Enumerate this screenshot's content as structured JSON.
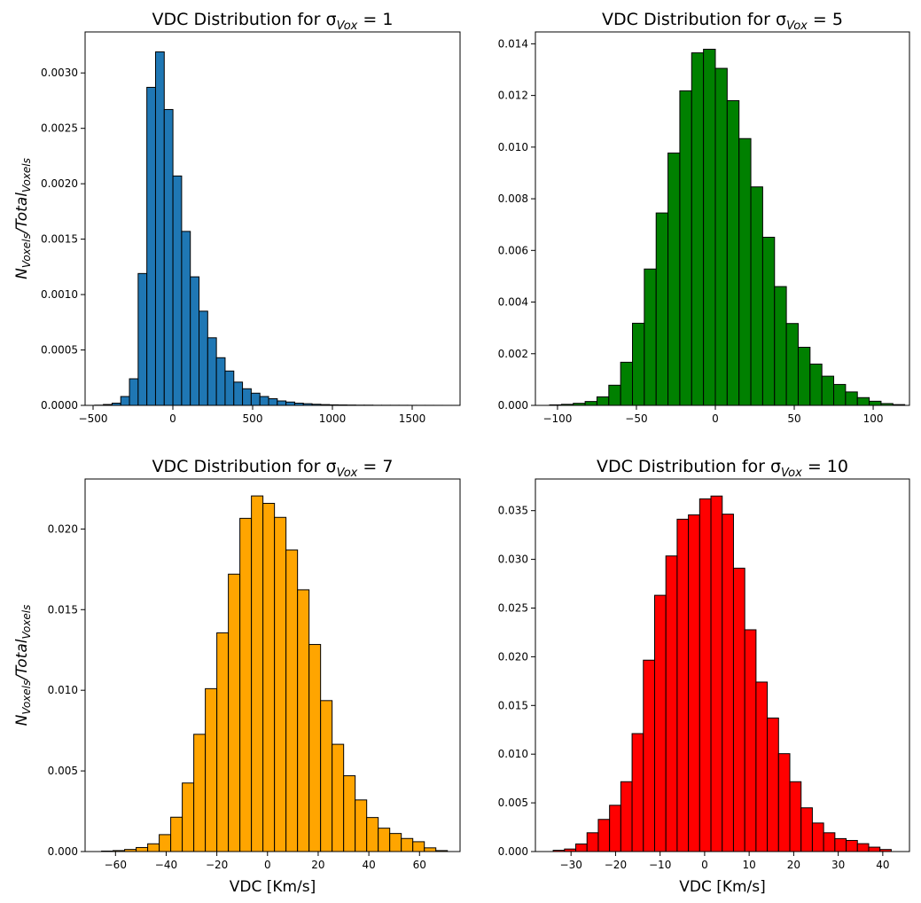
{
  "figure": {
    "background": "#ffffff"
  },
  "chart_data": [
    {
      "type": "bar",
      "title": "VDC Distribution for σ",
      "title_sub": "Vox",
      "title_value": " = 1",
      "xlabel": "",
      "ylabel_main": "N",
      "ylabel_sub1": "Voxels",
      "ylabel_mid": "/Total",
      "ylabel_sub2": "Voxels",
      "color": "#1f77b4",
      "xlim": [
        -550,
        1800
      ],
      "ylim": [
        0,
        0.00337
      ],
      "xticks": [
        -500,
        0,
        500,
        1000,
        1500
      ],
      "xtick_labels": [
        "−500",
        "0",
        "500",
        "1000",
        "1500"
      ],
      "yticks": [
        0,
        0.0005,
        0.001,
        0.0015,
        0.002,
        0.0025,
        0.003
      ],
      "ytick_labels": [
        "0.0000",
        "0.0005",
        "0.0010",
        "0.0015",
        "0.0020",
        "0.0025",
        "0.0030"
      ],
      "bin_start": -490,
      "bin_width": 54.5,
      "values": [
        2e-06,
        8e-06,
        2e-05,
        8e-05,
        0.00024,
        0.00119,
        0.00287,
        0.00319,
        0.00267,
        0.00207,
        0.00157,
        0.00116,
        0.00085,
        0.00061,
        0.00043,
        0.00031,
        0.00021,
        0.00015,
        0.00011,
        8e-05,
        6e-05,
        4e-05,
        3e-05,
        2e-05,
        1.5e-05,
        1e-05,
        7e-06,
        5e-06,
        4e-06,
        3e-06,
        2e-06,
        2e-06,
        1e-06,
        1e-06,
        1e-06,
        8e-07,
        6e-07,
        5e-07,
        4e-07,
        3e-07,
        2e-07,
        2e-07
      ]
    },
    {
      "type": "bar",
      "title": "VDC Distribution for σ",
      "title_sub": "Vox",
      "title_value": " = 5",
      "xlabel": "",
      "ylabel_main": "",
      "color": "#008000",
      "xlim": [
        -114,
        123
      ],
      "ylim": [
        0,
        0.01446
      ],
      "xticks": [
        -100,
        -50,
        0,
        50,
        100
      ],
      "xtick_labels": [
        "−100",
        "−50",
        "0",
        "50",
        "100"
      ],
      "yticks": [
        0,
        0.002,
        0.004,
        0.006,
        0.008,
        0.01,
        0.012,
        0.014
      ],
      "ytick_labels": [
        "0.000",
        "0.002",
        "0.004",
        "0.006",
        "0.008",
        "0.010",
        "0.012",
        "0.014"
      ],
      "bin_start": -105,
      "bin_width": 7.5,
      "values": [
        2e-05,
        4e-05,
        8e-05,
        0.00015,
        0.00033,
        0.00078,
        0.00167,
        0.00318,
        0.00528,
        0.00745,
        0.00977,
        0.01218,
        0.01365,
        0.01379,
        0.01305,
        0.0118,
        0.01033,
        0.00846,
        0.00651,
        0.0046,
        0.00317,
        0.00225,
        0.0016,
        0.00113,
        0.00081,
        0.00052,
        0.0003,
        0.00016,
        7e-05,
        3e-05
      ]
    },
    {
      "type": "bar",
      "title": "VDC Distribution for σ",
      "title_sub": "Vox",
      "title_value": " = 7",
      "xlabel": "VDC [Km/s]",
      "ylabel_main": "N",
      "ylabel_sub1": "Voxels",
      "ylabel_mid": "/Total",
      "ylabel_sub2": "Voxels",
      "color": "#ffa500",
      "xlim": [
        -72,
        76
      ],
      "ylim": [
        0,
        0.0231
      ],
      "xticks": [
        -60,
        -40,
        -20,
        0,
        20,
        40,
        60
      ],
      "xtick_labels": [
        "−60",
        "−40",
        "−20",
        "0",
        "20",
        "40",
        "60"
      ],
      "yticks": [
        0,
        0.005,
        0.01,
        0.015,
        0.02
      ],
      "ytick_labels": [
        "0.000",
        "0.005",
        "0.010",
        "0.015",
        "0.020"
      ],
      "bin_start": -65.5,
      "bin_width": 4.55,
      "values": [
        3e-05,
        6e-05,
        0.00013,
        0.00025,
        0.00048,
        0.00105,
        0.00213,
        0.00425,
        0.00727,
        0.0101,
        0.01356,
        0.0172,
        0.02066,
        0.02205,
        0.02159,
        0.02072,
        0.0187,
        0.01623,
        0.01284,
        0.00936,
        0.00665,
        0.0047,
        0.0032,
        0.00211,
        0.00145,
        0.00112,
        0.00081,
        0.00061,
        0.00023,
        6e-05
      ]
    },
    {
      "type": "bar",
      "title": "VDC Distribution for σ",
      "title_sub": "Vox",
      "title_value": " = 10",
      "xlabel": "VDC [Km/s]",
      "ylabel_main": "",
      "color": "#ff0000",
      "xlim": [
        -38,
        46
      ],
      "ylim": [
        0,
        0.03825
      ],
      "xticks": [
        -30,
        -20,
        -10,
        0,
        10,
        20,
        30,
        40
      ],
      "xtick_labels": [
        "−30",
        "−20",
        "−10",
        "0",
        "10",
        "20",
        "30",
        "40"
      ],
      "yticks": [
        0,
        0.005,
        0.01,
        0.015,
        0.02,
        0.025,
        0.03,
        0.035
      ],
      "ytick_labels": [
        "0.000",
        "0.005",
        "0.010",
        "0.015",
        "0.020",
        "0.025",
        "0.030",
        "0.035"
      ],
      "bin_start": -34,
      "bin_width": 2.53,
      "values": [
        0.00013,
        0.00026,
        0.00078,
        0.00193,
        0.0033,
        0.00475,
        0.00717,
        0.01211,
        0.01965,
        0.02631,
        0.03035,
        0.03412,
        0.03457,
        0.03621,
        0.0365,
        0.03464,
        0.02909,
        0.02277,
        0.0174,
        0.01371,
        0.01005,
        0.00717,
        0.00449,
        0.00293,
        0.00193,
        0.00133,
        0.00114,
        0.00081,
        0.00045,
        0.00021
      ]
    }
  ]
}
